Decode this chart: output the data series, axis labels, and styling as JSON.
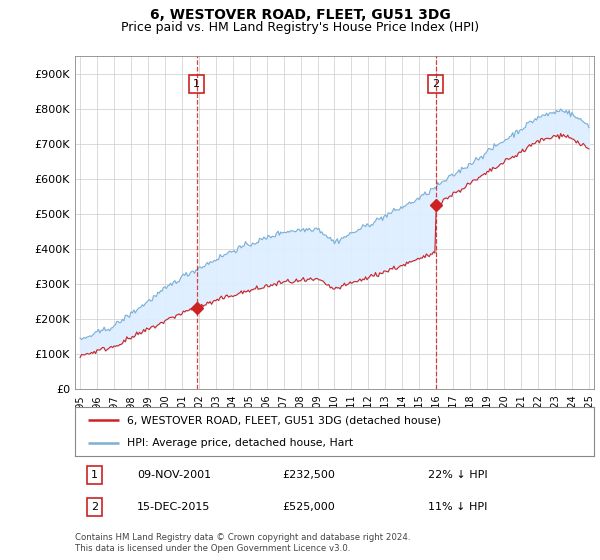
{
  "title": "6, WESTOVER ROAD, FLEET, GU51 3DG",
  "subtitle": "Price paid vs. HM Land Registry's House Price Index (HPI)",
  "ylim": [
    0,
    950000
  ],
  "yticks": [
    0,
    100000,
    200000,
    300000,
    400000,
    500000,
    600000,
    700000,
    800000,
    900000
  ],
  "ytick_labels": [
    "£0",
    "£100K",
    "£200K",
    "£300K",
    "£400K",
    "£500K",
    "£600K",
    "£700K",
    "£800K",
    "£900K"
  ],
  "hpi_color": "#7bafd4",
  "sale_color": "#cc2222",
  "fill_color": "#ddeeff",
  "vline_color": "#cc2222",
  "sale1_year": 2001.87,
  "sale1_price": 232500,
  "sale2_year": 2015.96,
  "sale2_price": 525000,
  "legend_label1": "6, WESTOVER ROAD, FLEET, GU51 3DG (detached house)",
  "legend_label2": "HPI: Average price, detached house, Hart",
  "table_row1": [
    "1",
    "09-NOV-2001",
    "£232,500",
    "22% ↓ HPI"
  ],
  "table_row2": [
    "2",
    "15-DEC-2015",
    "£525,000",
    "11% ↓ HPI"
  ],
  "footer": "Contains HM Land Registry data © Crown copyright and database right 2024.\nThis data is licensed under the Open Government Licence v3.0.",
  "title_fontsize": 10,
  "subtitle_fontsize": 9,
  "background_color": "#ffffff"
}
